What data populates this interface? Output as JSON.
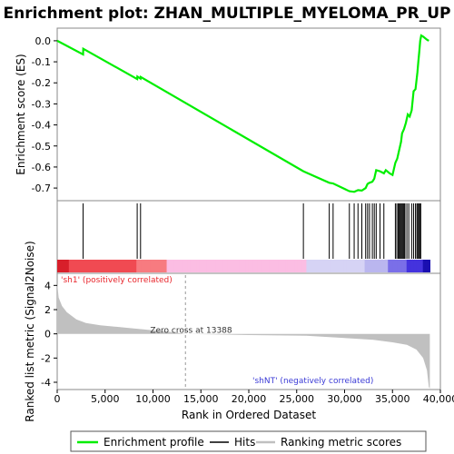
{
  "chart_data": {
    "type": "line",
    "title": "Enrichment plot: ZHAN_MULTIPLE_MYELOMA_PR_UP",
    "xlabel": "Rank in Ordered Dataset",
    "xlim": [
      0,
      40000
    ],
    "x_ticks": [
      0,
      5000,
      10000,
      15000,
      20000,
      25000,
      30000,
      35000,
      40000
    ],
    "x_tick_labels": [
      "0",
      "5,000",
      "10,000",
      "15,000",
      "20,000",
      "25,000",
      "30,000",
      "35,000",
      "40,000"
    ],
    "n_genes": 38900,
    "es_panel": {
      "ylabel": "Enrichment score (ES)",
      "ylim": [
        -0.76,
        0.06
      ],
      "y_ticks": [
        0.0,
        -0.1,
        -0.2,
        -0.3,
        -0.4,
        -0.5,
        -0.6,
        -0.7
      ],
      "y_tick_labels": [
        "0.0",
        "-0.1",
        "-0.2",
        "-0.3",
        "-0.4",
        "-0.5",
        "-0.6",
        "-0.7"
      ],
      "series_name": "Enrichment profile",
      "color": "#00ee00",
      "points": [
        [
          0,
          0.0
        ],
        [
          2700,
          -0.065
        ],
        [
          2720,
          -0.038
        ],
        [
          8350,
          -0.182
        ],
        [
          8370,
          -0.17
        ],
        [
          8700,
          -0.18
        ],
        [
          8720,
          -0.172
        ],
        [
          25700,
          -0.62
        ],
        [
          28400,
          -0.675
        ],
        [
          28800,
          -0.678
        ],
        [
          30500,
          -0.715
        ],
        [
          31000,
          -0.718
        ],
        [
          31400,
          -0.71
        ],
        [
          31800,
          -0.712
        ],
        [
          32200,
          -0.7
        ],
        [
          32400,
          -0.68
        ],
        [
          32600,
          -0.675
        ],
        [
          32900,
          -0.67
        ],
        [
          33100,
          -0.655
        ],
        [
          33300,
          -0.615
        ],
        [
          33700,
          -0.62
        ],
        [
          34100,
          -0.63
        ],
        [
          34300,
          -0.615
        ],
        [
          34700,
          -0.63
        ],
        [
          35000,
          -0.638
        ],
        [
          35300,
          -0.58
        ],
        [
          35500,
          -0.56
        ],
        [
          35700,
          -0.52
        ],
        [
          35900,
          -0.48
        ],
        [
          36000,
          -0.44
        ],
        [
          36200,
          -0.42
        ],
        [
          36400,
          -0.39
        ],
        [
          36600,
          -0.35
        ],
        [
          36800,
          -0.36
        ],
        [
          37000,
          -0.33
        ],
        [
          37200,
          -0.24
        ],
        [
          37400,
          -0.23
        ],
        [
          37600,
          -0.15
        ],
        [
          37700,
          -0.1
        ],
        [
          37800,
          -0.05
        ],
        [
          37900,
          0.0
        ],
        [
          38000,
          0.025
        ],
        [
          38200,
          0.02
        ],
        [
          38600,
          0.005
        ],
        [
          38800,
          0.0
        ]
      ]
    },
    "hits_panel": {
      "series_name": "Hits",
      "positions": [
        2700,
        8350,
        8700,
        25700,
        28400,
        28800,
        30500,
        31000,
        31400,
        31800,
        32200,
        32400,
        32600,
        32900,
        33100,
        33300,
        33700,
        34100,
        35300,
        35450,
        35600,
        35700,
        35800,
        35900,
        36000,
        36100,
        36200,
        36300,
        36500,
        36700,
        37000,
        37200,
        37400,
        37550,
        37650,
        37750,
        37850,
        37950
      ]
    },
    "metric_panel": {
      "ylabel": "Ranked list metric (Signal2Noise)",
      "ylim": [
        -4.6,
        5.0
      ],
      "y_ticks": [
        4,
        2,
        0,
        -2,
        -4
      ],
      "y_tick_labels": [
        "4",
        "2",
        "0",
        "-2",
        "-4"
      ],
      "series_name": "Ranking metric scores",
      "zero_cross": 13388,
      "zero_cross_label": "Zero cross at 13388",
      "pos_label": "'sh1' (positively correlated)",
      "neg_label": "'shNT' (negatively correlated)",
      "points": [
        [
          0,
          4.2
        ],
        [
          150,
          3.0
        ],
        [
          500,
          2.3
        ],
        [
          1000,
          1.8
        ],
        [
          2000,
          1.2
        ],
        [
          3000,
          0.9
        ],
        [
          4500,
          0.7
        ],
        [
          6000,
          0.6
        ],
        [
          8000,
          0.45
        ],
        [
          10000,
          0.3
        ],
        [
          12000,
          0.15
        ],
        [
          13388,
          0.0
        ],
        [
          20000,
          -0.1
        ],
        [
          26000,
          -0.15
        ],
        [
          30000,
          -0.35
        ],
        [
          33000,
          -0.5
        ],
        [
          35000,
          -0.7
        ],
        [
          36500,
          -0.9
        ],
        [
          37500,
          -1.3
        ],
        [
          38200,
          -2.0
        ],
        [
          38600,
          -3.0
        ],
        [
          38800,
          -4.4
        ],
        [
          38900,
          -4.5
        ]
      ]
    },
    "legend": [
      {
        "label": "Enrichment profile",
        "color": "#00ee00"
      },
      {
        "label": "Hits",
        "color": "#000000"
      },
      {
        "label": "Ranking metric scores",
        "color": "#c0c0c0"
      }
    ]
  }
}
